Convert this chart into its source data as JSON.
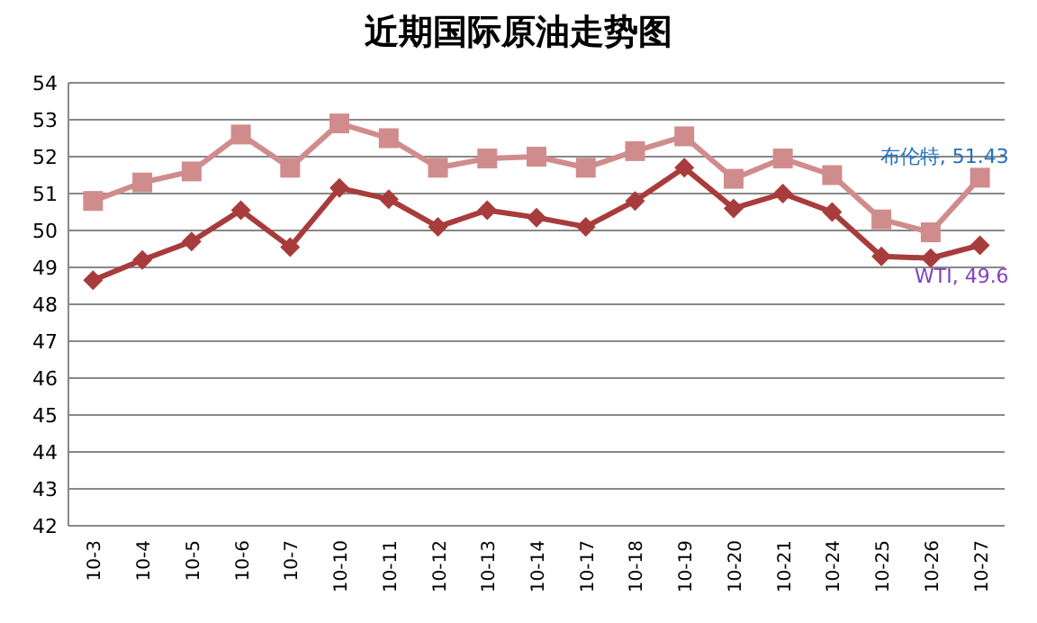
{
  "chart_data": {
    "type": "line",
    "title": "近期国际原油走势图",
    "categories": [
      "10-3",
      "10-4",
      "10-5",
      "10-6",
      "10-7",
      "10-10",
      "10-11",
      "10-12",
      "10-13",
      "10-14",
      "10-17",
      "10-18",
      "10-19",
      "10-20",
      "10-21",
      "10-24",
      "10-25",
      "10-26",
      "10-27"
    ],
    "series": [
      {
        "name": "布伦特",
        "color": "#d08c8c",
        "marker": "square",
        "values": [
          50.8,
          51.3,
          51.6,
          52.6,
          51.7,
          52.9,
          52.5,
          51.7,
          51.95,
          52.0,
          51.7,
          52.15,
          52.55,
          51.4,
          51.95,
          51.5,
          50.3,
          49.95,
          51.43
        ],
        "value_labels": [
          null,
          null,
          null,
          null,
          null,
          null,
          null,
          null,
          null,
          null,
          null,
          null,
          null,
          null,
          null,
          null,
          null,
          null,
          ", 51.43"
        ]
      },
      {
        "name": "WTI",
        "color": "#a83c3c",
        "marker": "diamond",
        "values": [
          48.65,
          49.2,
          49.7,
          50.55,
          49.55,
          51.15,
          50.85,
          50.1,
          50.55,
          50.35,
          50.1,
          50.8,
          51.7,
          50.6,
          51.0,
          50.5,
          49.3,
          49.25,
          49.6
        ],
        "value_labels": [
          null,
          null,
          null,
          null,
          null,
          null,
          null,
          null,
          null,
          null,
          null,
          null,
          null,
          null,
          null,
          null,
          null,
          null,
          ", 49.6"
        ]
      }
    ],
    "ylim": [
      42,
      54
    ],
    "yticks": [
      42,
      43,
      44,
      45,
      46,
      47,
      48,
      49,
      50,
      51,
      52,
      53,
      54
    ],
    "grid": "y",
    "legend": false,
    "line_style": "solid"
  }
}
